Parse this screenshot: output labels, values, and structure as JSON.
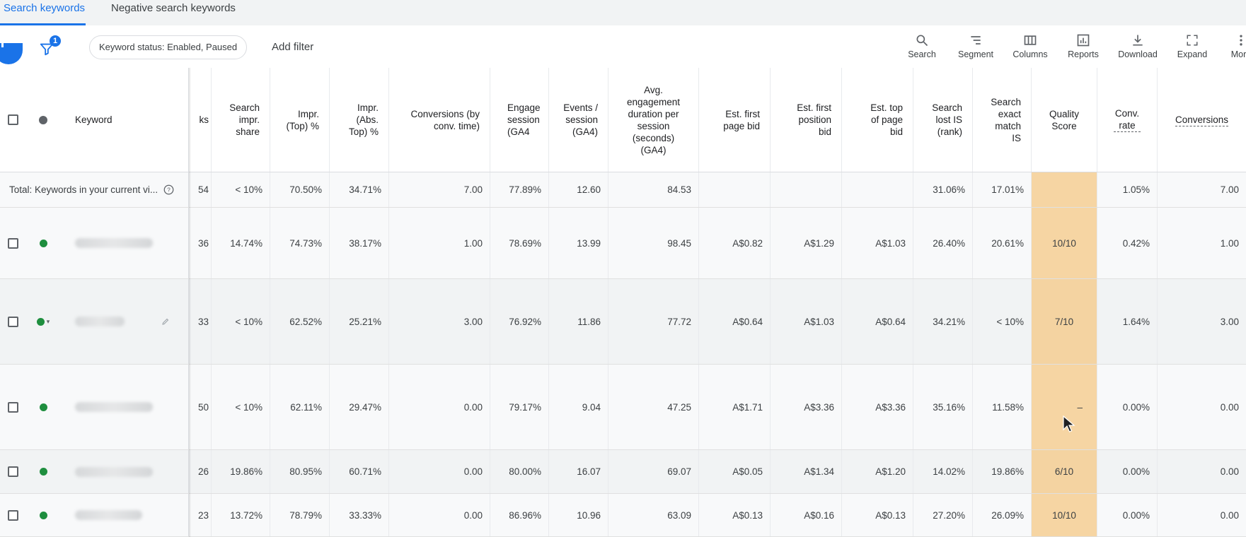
{
  "tabs": {
    "active": "Search keywords",
    "other": "Negative search keywords"
  },
  "toolbar": {
    "filter_count": "1",
    "filter_chip": "Keyword status: Enabled, Paused",
    "add_filter": "Add filter",
    "tools": [
      {
        "label": "Search",
        "icon": "search-icon"
      },
      {
        "label": "Segment",
        "icon": "segment-icon"
      },
      {
        "label": "Columns",
        "icon": "columns-icon"
      },
      {
        "label": "Reports",
        "icon": "reports-icon"
      },
      {
        "label": "Download",
        "icon": "download-icon"
      },
      {
        "label": "Expand",
        "icon": "expand-icon"
      },
      {
        "label": "More",
        "icon": "more-icon"
      }
    ]
  },
  "table": {
    "headers": {
      "keyword": "Keyword",
      "clicks": "ks",
      "search_impr_share": "Search impr. share",
      "impr_top": "Impr. (Top) %",
      "impr_abs_top": "Impr. (Abs. Top) %",
      "conversions_conv_time": "Conversions (by conv. time)",
      "engaged_sessions": "Engage session (GA4",
      "events_per_session": "Events / session (GA4)",
      "avg_engagement": "Avg. engagement duration per session (seconds) (GA4)",
      "est_first_page_bid": "Est. first page bid",
      "est_first_position_bid": "Est. first position bid",
      "est_top_of_page_bid": "Est. top of page bid",
      "search_lost_is_rank": "Search lost IS (rank)",
      "search_exact_match_is": "Search exact match IS",
      "quality_score": "Quality Score",
      "conv_rate": "Conv. rate",
      "conversions": "Conversions"
    },
    "total": {
      "label": "Total: Keywords in your current vi...",
      "clicks": "54",
      "search_impr_share": "< 10%",
      "impr_top": "70.50%",
      "impr_abs_top": "34.71%",
      "conversions_conv_time": "7.00",
      "engaged_sessions": "77.89%",
      "events_per_session": "12.60",
      "avg_engagement": "84.53",
      "est_first_page_bid": "",
      "est_first_position_bid": "",
      "est_top_of_page_bid": "",
      "search_lost_is_rank": "31.06%",
      "search_exact_match_is": "17.01%",
      "quality_score": "",
      "conv_rate": "1.05%",
      "conversions": "7.00"
    },
    "rows": [
      {
        "clicks": "36",
        "search_impr_share": "14.74%",
        "impr_top": "74.73%",
        "impr_abs_top": "38.17%",
        "conversions_conv_time": "1.00",
        "engaged_sessions": "78.69%",
        "events_per_session": "13.99",
        "avg_engagement": "98.45",
        "est_first_page_bid": "A$0.82",
        "est_first_position_bid": "A$1.29",
        "est_top_of_page_bid": "A$1.03",
        "search_lost_is_rank": "26.40%",
        "search_exact_match_is": "20.61%",
        "quality_score": "10/10",
        "conv_rate": "0.42%",
        "conversions": "1.00"
      },
      {
        "clicks": "33",
        "search_impr_share": "< 10%",
        "impr_top": "62.52%",
        "impr_abs_top": "25.21%",
        "conversions_conv_time": "3.00",
        "engaged_sessions": "76.92%",
        "events_per_session": "11.86",
        "avg_engagement": "77.72",
        "est_first_page_bid": "A$0.64",
        "est_first_position_bid": "A$1.03",
        "est_top_of_page_bid": "A$0.64",
        "search_lost_is_rank": "34.21%",
        "search_exact_match_is": "< 10%",
        "quality_score": "7/10",
        "conv_rate": "1.64%",
        "conversions": "3.00"
      },
      {
        "clicks": "50",
        "search_impr_share": "< 10%",
        "impr_top": "62.11%",
        "impr_abs_top": "29.47%",
        "conversions_conv_time": "0.00",
        "engaged_sessions": "79.17%",
        "events_per_session": "9.04",
        "avg_engagement": "47.25",
        "est_first_page_bid": "A$1.71",
        "est_first_position_bid": "A$3.36",
        "est_top_of_page_bid": "A$3.36",
        "search_lost_is_rank": "35.16%",
        "search_exact_match_is": "11.58%",
        "quality_score": "–",
        "conv_rate": "0.00%",
        "conversions": "0.00"
      },
      {
        "clicks": "26",
        "search_impr_share": "19.86%",
        "impr_top": "80.95%",
        "impr_abs_top": "60.71%",
        "conversions_conv_time": "0.00",
        "engaged_sessions": "80.00%",
        "events_per_session": "16.07",
        "avg_engagement": "69.07",
        "est_first_page_bid": "A$0.05",
        "est_first_position_bid": "A$1.34",
        "est_top_of_page_bid": "A$1.20",
        "search_lost_is_rank": "14.02%",
        "search_exact_match_is": "19.86%",
        "quality_score": "6/10",
        "conv_rate": "0.00%",
        "conversions": "0.00"
      },
      {
        "clicks": "23",
        "search_impr_share": "13.72%",
        "impr_top": "78.79%",
        "impr_abs_top": "33.33%",
        "conversions_conv_time": "0.00",
        "engaged_sessions": "86.96%",
        "events_per_session": "10.96",
        "avg_engagement": "63.09",
        "est_first_page_bid": "A$0.13",
        "est_first_position_bid": "A$0.16",
        "est_top_of_page_bid": "A$0.13",
        "search_lost_is_rank": "27.20%",
        "search_exact_match_is": "26.09%",
        "quality_score": "10/10",
        "conv_rate": "0.00%",
        "conversions": "0.00"
      }
    ]
  },
  "colors": {
    "accent": "#1a73e8",
    "status_enabled": "#1e8e3e",
    "quality_score_highlight": "#f5bf6e"
  }
}
